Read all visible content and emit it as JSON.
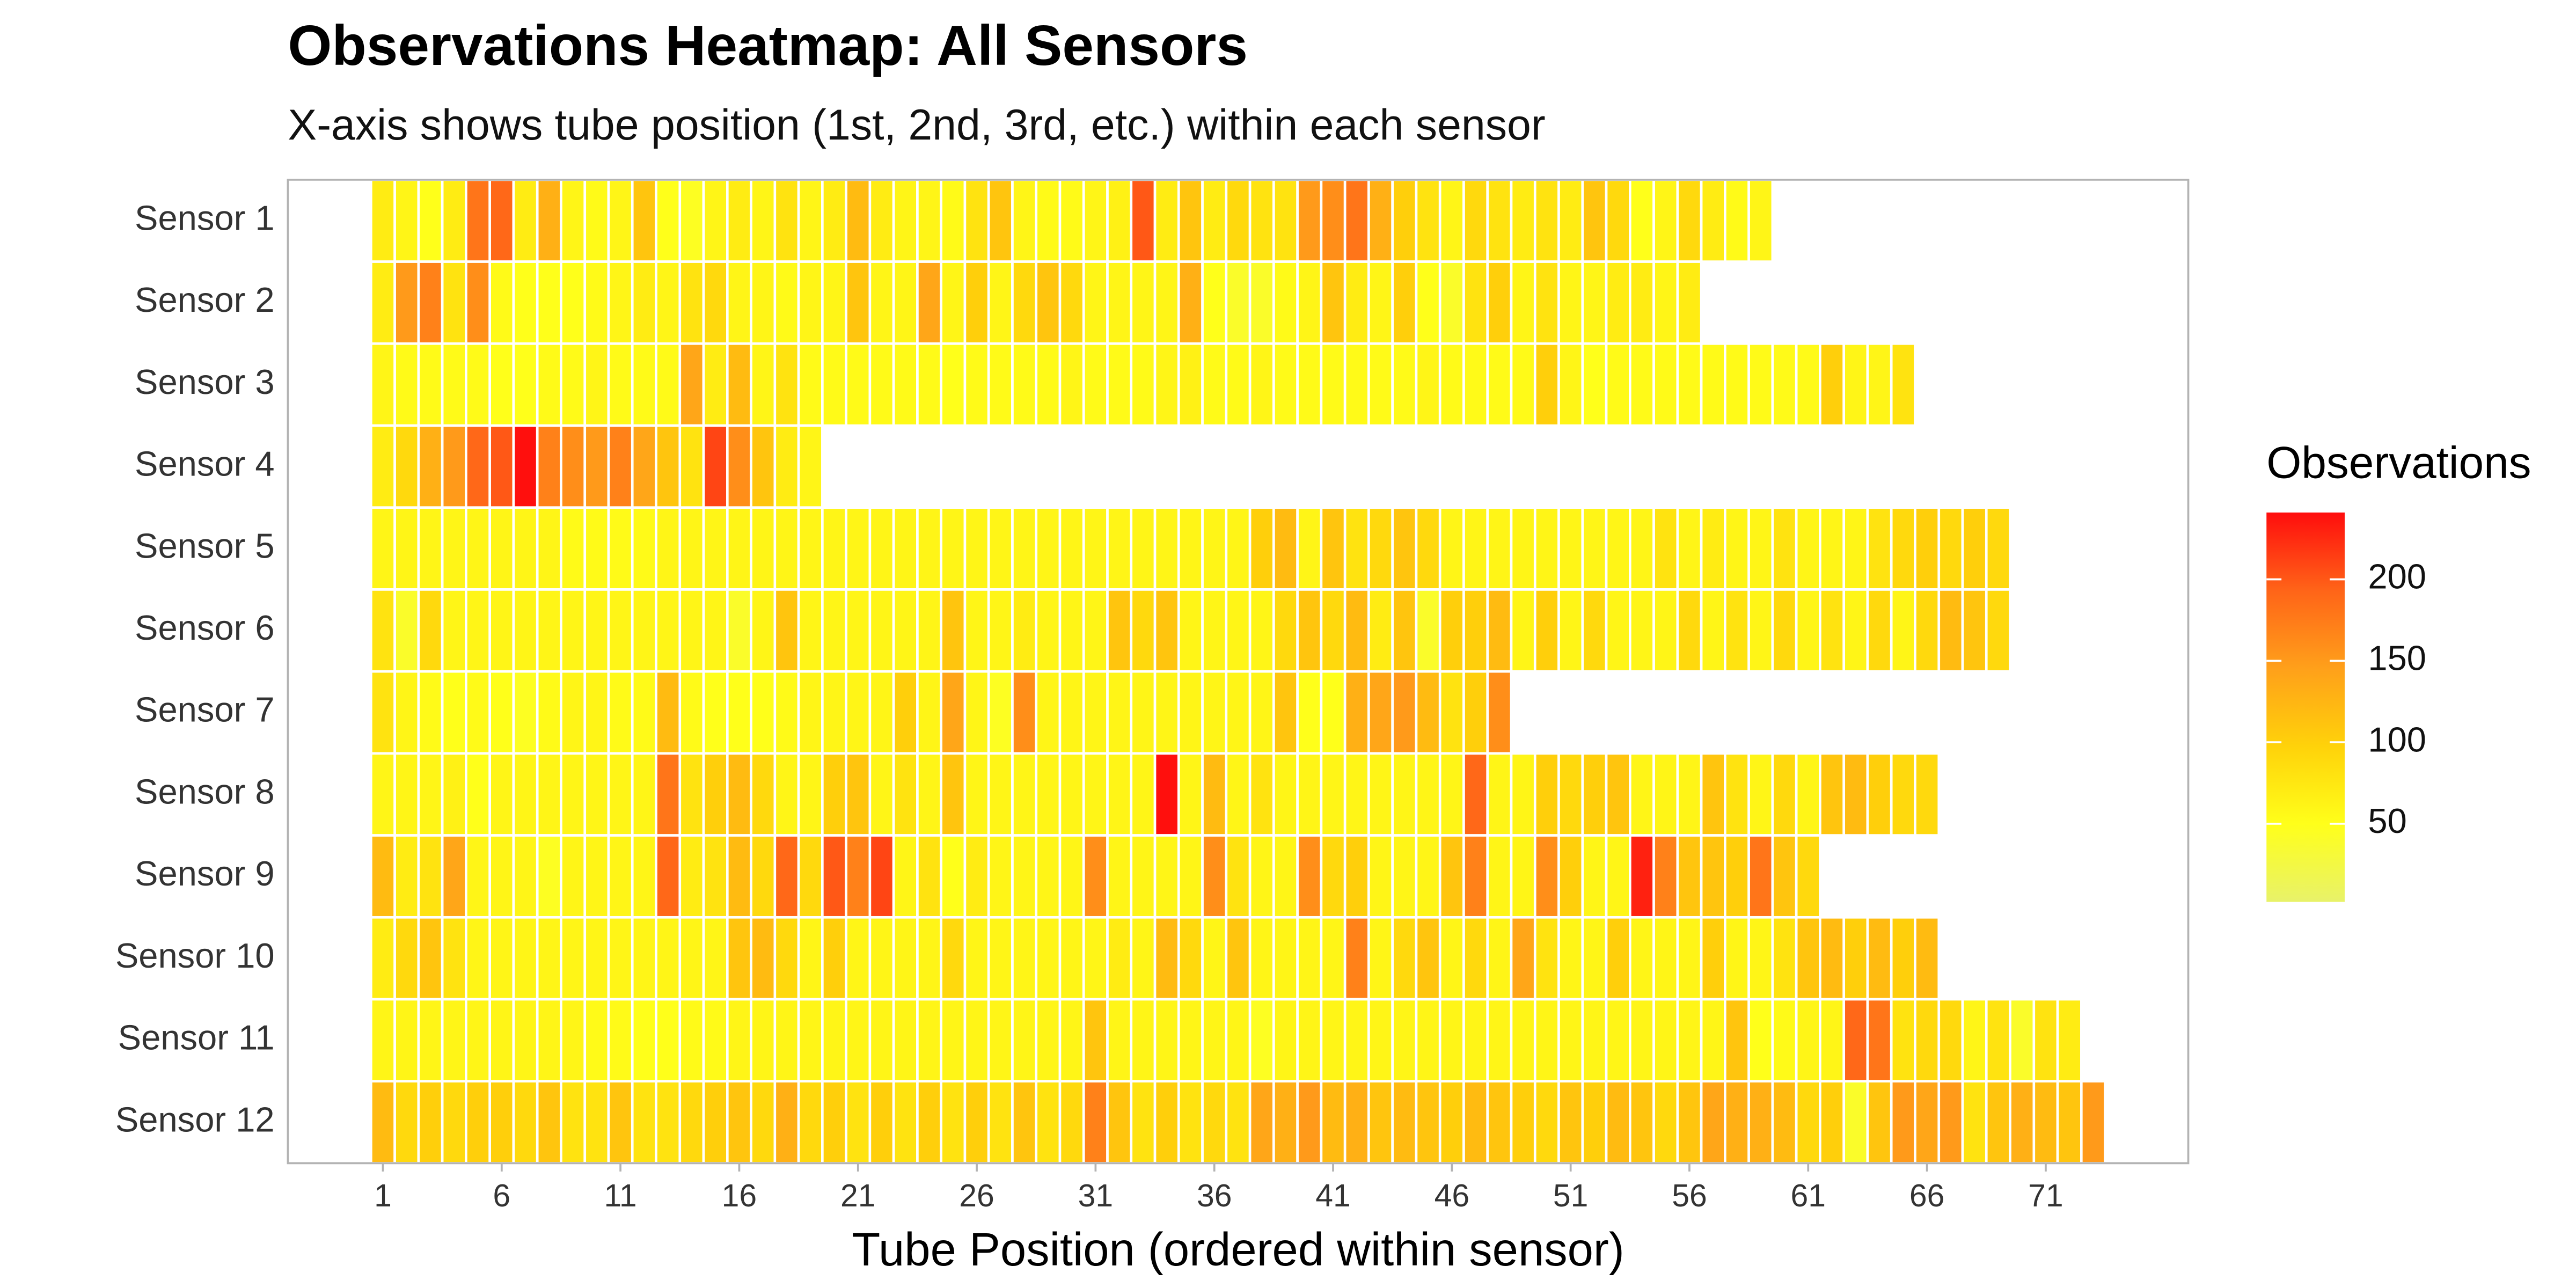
{
  "chart_data": {
    "type": "heatmap",
    "title": "Observations Heatmap: All Sensors",
    "subtitle": "X-axis shows tube position (1st, 2nd, 3rd, etc.) within each sensor",
    "x_label": "Tube Position (ordered within sensor)",
    "legend_title": "Observations",
    "xlim": [
      -3,
      77
    ],
    "xticks": [
      1,
      6,
      11,
      16,
      21,
      26,
      31,
      36,
      41,
      46,
      51,
      56,
      61,
      66,
      71
    ],
    "clim": [
      2,
      241
    ],
    "cticks": [
      50,
      100,
      150,
      200
    ],
    "colorscale": [
      "#e8f26a",
      "#ffff1a",
      "#ffd20a",
      "#ffa01a",
      "#ff6418",
      "#ff0d0d"
    ],
    "series": [
      {
        "name": "Sensor 1",
        "values": [
          70,
          60,
          50,
          70,
          180,
          190,
          70,
          130,
          60,
          55,
          60,
          110,
          50,
          45,
          60,
          70,
          60,
          80,
          60,
          70,
          120,
          70,
          60,
          60,
          55,
          80,
          110,
          60,
          55,
          55,
          60,
          65,
          200,
          70,
          110,
          70,
          90,
          80,
          80,
          150,
          160,
          180,
          130,
          100,
          80,
          60,
          90,
          80,
          70,
          80,
          70,
          110,
          90,
          50,
          60,
          90,
          70,
          55,
          60
        ]
      },
      {
        "name": "Sensor 2",
        "values": [
          70,
          150,
          170,
          80,
          160,
          55,
          50,
          50,
          50,
          55,
          60,
          70,
          60,
          80,
          90,
          60,
          60,
          55,
          60,
          60,
          110,
          60,
          60,
          140,
          60,
          100,
          60,
          90,
          110,
          90,
          60,
          60,
          60,
          60,
          130,
          50,
          40,
          40,
          55,
          60,
          110,
          70,
          60,
          100,
          50,
          40,
          80,
          100,
          60,
          80,
          60,
          60,
          70,
          70,
          60,
          70
        ]
      },
      {
        "name": "Sensor 3",
        "values": [
          60,
          55,
          55,
          55,
          55,
          50,
          50,
          55,
          55,
          60,
          55,
          55,
          55,
          140,
          70,
          120,
          60,
          80,
          55,
          55,
          55,
          55,
          55,
          55,
          50,
          55,
          55,
          55,
          55,
          60,
          55,
          55,
          55,
          60,
          65,
          55,
          55,
          60,
          55,
          55,
          55,
          55,
          55,
          55,
          60,
          55,
          55,
          55,
          55,
          100,
          60,
          50,
          55,
          55,
          55,
          55,
          55,
          55,
          55,
          55,
          55,
          100,
          60,
          60,
          80
        ]
      },
      {
        "name": "Sensor 4",
        "values": [
          70,
          90,
          130,
          150,
          190,
          200,
          240,
          170,
          160,
          150,
          170,
          140,
          110,
          80,
          210,
          160,
          110,
          70,
          60
        ]
      },
      {
        "name": "Sensor 5",
        "values": [
          60,
          60,
          60,
          60,
          60,
          60,
          60,
          60,
          55,
          55,
          55,
          55,
          60,
          60,
          60,
          60,
          60,
          60,
          60,
          60,
          60,
          60,
          60,
          60,
          60,
          60,
          60,
          60,
          60,
          60,
          60,
          60,
          60,
          60,
          60,
          60,
          60,
          100,
          120,
          60,
          110,
          80,
          90,
          110,
          90,
          60,
          60,
          60,
          60,
          60,
          60,
          60,
          60,
          60,
          80,
          60,
          70,
          60,
          60,
          80,
          60,
          60,
          60,
          80,
          90,
          100,
          90,
          100,
          90
        ]
      },
      {
        "name": "Sensor 6",
        "values": [
          80,
          40,
          90,
          60,
          60,
          60,
          60,
          60,
          60,
          60,
          60,
          60,
          60,
          60,
          60,
          40,
          60,
          110,
          60,
          60,
          60,
          60,
          60,
          60,
          110,
          60,
          60,
          70,
          60,
          60,
          60,
          110,
          90,
          110,
          60,
          60,
          60,
          60,
          90,
          110,
          90,
          120,
          70,
          110,
          40,
          100,
          100,
          120,
          60,
          100,
          60,
          90,
          60,
          60,
          60,
          90,
          60,
          80,
          60,
          90,
          60,
          80,
          60,
          90,
          60,
          90,
          120,
          110,
          90
        ]
      },
      {
        "name": "Sensor 7",
        "values": [
          80,
          60,
          55,
          50,
          55,
          50,
          45,
          55,
          60,
          60,
          55,
          55,
          120,
          55,
          50,
          50,
          50,
          55,
          60,
          60,
          60,
          60,
          100,
          60,
          140,
          60,
          45,
          160,
          60,
          60,
          60,
          60,
          60,
          60,
          60,
          60,
          60,
          60,
          110,
          50,
          50,
          130,
          140,
          150,
          120,
          80,
          100,
          160
        ]
      },
      {
        "name": "Sensor 8",
        "values": [
          60,
          60,
          60,
          65,
          50,
          60,
          60,
          60,
          60,
          60,
          60,
          60,
          180,
          80,
          100,
          120,
          90,
          60,
          60,
          100,
          110,
          60,
          80,
          60,
          110,
          60,
          60,
          60,
          60,
          60,
          60,
          60,
          60,
          240,
          60,
          120,
          60,
          80,
          60,
          60,
          60,
          60,
          60,
          60,
          60,
          60,
          190,
          60,
          60,
          100,
          90,
          100,
          110,
          60,
          60,
          60,
          110,
          80,
          60,
          90,
          60,
          110,
          120,
          100,
          90,
          90
        ]
      },
      {
        "name": "Sensor 9",
        "values": [
          120,
          70,
          80,
          140,
          60,
          60,
          60,
          45,
          60,
          60,
          60,
          60,
          190,
          70,
          80,
          120,
          90,
          190,
          90,
          200,
          170,
          210,
          60,
          80,
          50,
          70,
          60,
          60,
          60,
          60,
          160,
          60,
          60,
          60,
          60,
          160,
          80,
          60,
          60,
          160,
          90,
          100,
          60,
          60,
          60,
          110,
          170,
          60,
          60,
          160,
          100,
          60,
          60,
          230,
          170,
          110,
          110,
          100,
          180,
          110,
          90
        ]
      },
      {
        "name": "Sensor 10",
        "values": [
          70,
          90,
          110,
          80,
          60,
          60,
          60,
          60,
          60,
          60,
          60,
          60,
          60,
          60,
          60,
          110,
          120,
          90,
          60,
          100,
          60,
          60,
          60,
          60,
          90,
          60,
          60,
          60,
          60,
          60,
          60,
          70,
          60,
          120,
          90,
          60,
          110,
          60,
          60,
          60,
          60,
          170,
          60,
          90,
          110,
          60,
          90,
          60,
          140,
          80,
          60,
          60,
          100,
          60,
          60,
          60,
          100,
          60,
          60,
          80,
          110,
          120,
          100,
          120,
          100,
          120
        ]
      },
      {
        "name": "Sensor 11",
        "values": [
          60,
          60,
          60,
          60,
          60,
          60,
          60,
          60,
          60,
          55,
          55,
          50,
          50,
          55,
          55,
          60,
          60,
          60,
          60,
          60,
          60,
          60,
          60,
          60,
          60,
          60,
          60,
          60,
          60,
          60,
          110,
          60,
          60,
          60,
          60,
          60,
          60,
          45,
          60,
          60,
          60,
          60,
          60,
          60,
          60,
          60,
          60,
          60,
          60,
          60,
          60,
          60,
          60,
          60,
          60,
          60,
          60,
          110,
          50,
          55,
          60,
          60,
          190,
          180,
          80,
          90,
          90,
          60,
          80,
          40,
          80,
          70
        ]
      },
      {
        "name": "Sensor 12",
        "values": [
          120,
          90,
          100,
          90,
          100,
          100,
          90,
          110,
          80,
          80,
          110,
          80,
          80,
          90,
          100,
          110,
          90,
          130,
          90,
          100,
          80,
          100,
          80,
          100,
          80,
          100,
          80,
          110,
          80,
          90,
          170,
          110,
          80,
          100,
          80,
          90,
          80,
          140,
          130,
          150,
          120,
          130,
          110,
          120,
          110,
          100,
          120,
          110,
          100,
          90,
          110,
          100,
          120,
          110,
          90,
          110,
          140,
          130,
          130,
          120,
          90,
          100,
          40,
          110,
          150,
          140,
          150,
          80,
          110,
          130,
          120,
          110,
          150
        ]
      }
    ]
  }
}
